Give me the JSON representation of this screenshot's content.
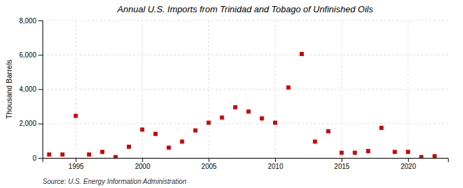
{
  "chart_data": {
    "type": "scatter",
    "title": "Annual U.S. Imports from Trinidad and Tobago of Unfinished Oils",
    "y_label": "Thousand Barrels",
    "source": "Source: U.S. Energy Information Administration",
    "x": [
      1993,
      1994,
      1995,
      1996,
      1997,
      1998,
      1999,
      2000,
      2001,
      2002,
      2003,
      2004,
      2005,
      2006,
      2007,
      2008,
      2009,
      2010,
      2011,
      2012,
      2013,
      2014,
      2015,
      2016,
      2017,
      2018,
      2019,
      2020,
      2021,
      2022
    ],
    "values": [
      200,
      200,
      2450,
      200,
      350,
      50,
      650,
      1650,
      1400,
      600,
      950,
      1600,
      2050,
      2350,
      2950,
      2700,
      2300,
      2050,
      4100,
      6050,
      950,
      1550,
      300,
      300,
      400,
      1750,
      350,
      350,
      50,
      100
    ],
    "color": "#cc0000",
    "marker": "square",
    "xlim": [
      1992.5,
      2023
    ],
    "xticks": [
      1995,
      2000,
      2005,
      2010,
      2015,
      2020
    ],
    "ylim": [
      0,
      8000
    ],
    "yticks": [
      0,
      {
        "value": 2000,
        "label": "2,000"
      },
      {
        "value": 4000,
        "label": "4,000"
      },
      {
        "value": 6000,
        "label": "6,000"
      },
      {
        "value": 8000,
        "label": "8,000"
      }
    ],
    "grid": true
  }
}
